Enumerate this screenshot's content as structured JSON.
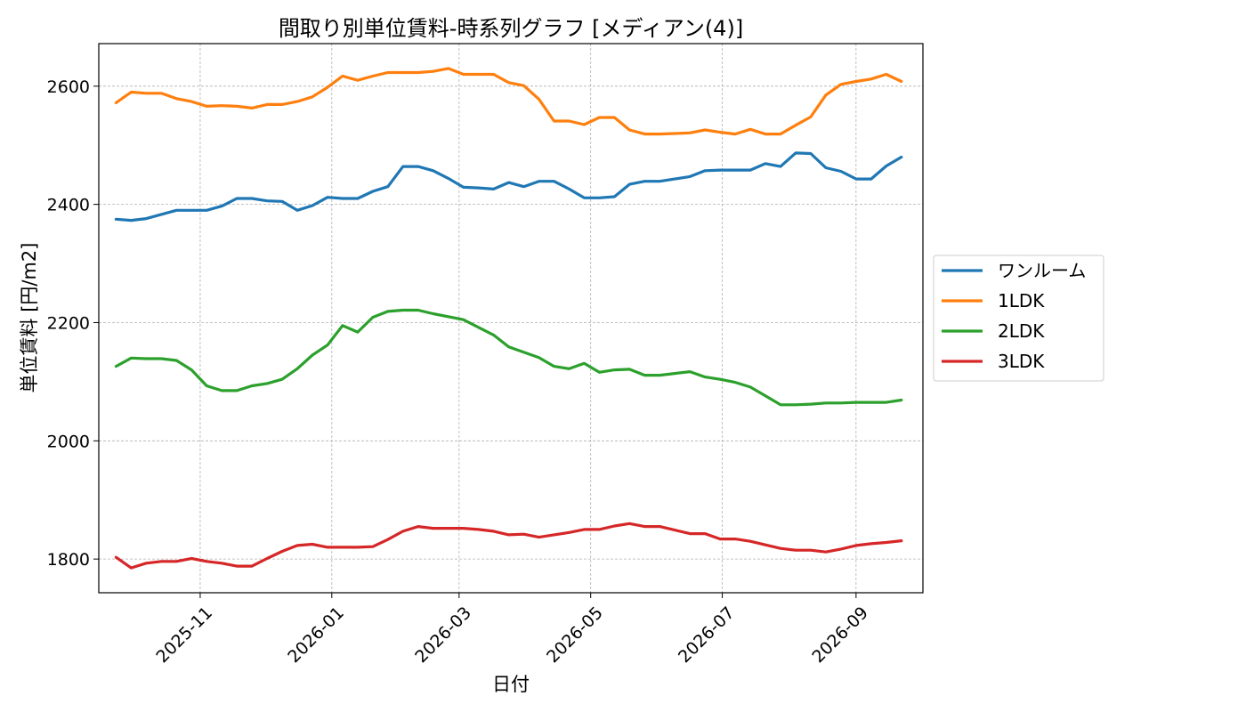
{
  "chart_data": {
    "type": "line",
    "title": "間取り別単位賃料-時系列グラフ [メディアン(4)]",
    "xlabel": "日付",
    "ylabel": "単位賃料 [円/m2]",
    "x_ticks": [
      "2025-11",
      "2026-01",
      "2026-03",
      "2026-05",
      "2026-07",
      "2026-09"
    ],
    "y_ticks": [
      1800,
      2000,
      2200,
      2400,
      2600
    ],
    "ylim": [
      1743,
      2672
    ],
    "xlim": [
      "2025-09-15",
      "2026-10-02"
    ],
    "grid": true,
    "legend_position": "right",
    "x": [
      "2025-09-23",
      "2025-09-30",
      "2025-10-07",
      "2025-10-14",
      "2025-10-21",
      "2025-10-28",
      "2025-11-04",
      "2025-11-11",
      "2025-11-18",
      "2025-11-25",
      "2025-12-02",
      "2025-12-09",
      "2025-12-16",
      "2025-12-23",
      "2025-12-30",
      "2026-01-06",
      "2026-01-13",
      "2026-01-20",
      "2026-01-27",
      "2026-02-03",
      "2026-02-10",
      "2026-02-17",
      "2026-02-24",
      "2026-03-03",
      "2026-03-10",
      "2026-03-17",
      "2026-03-24",
      "2026-03-31",
      "2026-04-07",
      "2026-04-14",
      "2026-04-21",
      "2026-04-28",
      "2026-05-05",
      "2026-05-12",
      "2026-05-19",
      "2026-05-26",
      "2026-06-02",
      "2026-06-09",
      "2026-06-16",
      "2026-06-23",
      "2026-06-30",
      "2026-07-07",
      "2026-07-14",
      "2026-07-21",
      "2026-07-28",
      "2026-08-04",
      "2026-08-11",
      "2026-08-18",
      "2026-08-25",
      "2026-09-01",
      "2026-09-08",
      "2026-09-15",
      "2026-09-22"
    ],
    "series": [
      {
        "name": "ワンルーム",
        "color": "#1f77b4",
        "values": [
          2375,
          2373,
          2376,
          2383,
          2390,
          2390,
          2390,
          2397,
          2410,
          2410,
          2406,
          2405,
          2390,
          2398,
          2412,
          2410,
          2410,
          2422,
          2430,
          2464,
          2464,
          2457,
          2444,
          2429,
          2428,
          2426,
          2437,
          2430,
          2439,
          2439,
          2426,
          2411,
          2411,
          2413,
          2434,
          2439,
          2439,
          2443,
          2447,
          2457,
          2458,
          2458,
          2458,
          2469,
          2464,
          2487,
          2486,
          2462,
          2456,
          2443,
          2443,
          2465,
          2480
        ]
      },
      {
        "name": "1LDK",
        "color": "#ff7f0e",
        "values": [
          2572,
          2590,
          2588,
          2588,
          2579,
          2574,
          2566,
          2567,
          2566,
          2563,
          2569,
          2569,
          2574,
          2582,
          2598,
          2617,
          2610,
          2617,
          2623,
          2623,
          2623,
          2625,
          2630,
          2620,
          2620,
          2620,
          2606,
          2601,
          2578,
          2541,
          2541,
          2535,
          2547,
          2547,
          2526,
          2519,
          2519,
          2520,
          2521,
          2526,
          2522,
          2519,
          2527,
          2519,
          2519,
          2534,
          2548,
          2585,
          2603,
          2608,
          2612,
          2620,
          2608
        ]
      },
      {
        "name": "2LDK",
        "color": "#2ca02c",
        "values": [
          2126,
          2140,
          2139,
          2139,
          2136,
          2120,
          2093,
          2085,
          2085,
          2093,
          2097,
          2104,
          2122,
          2145,
          2162,
          2195,
          2184,
          2209,
          2219,
          2221,
          2221,
          2215,
          2210,
          2205,
          2192,
          2179,
          2159,
          2150,
          2141,
          2126,
          2122,
          2131,
          2116,
          2120,
          2121,
          2111,
          2111,
          2114,
          2117,
          2108,
          2104,
          2099,
          2091,
          2076,
          2061,
          2061,
          2062,
          2064,
          2064,
          2065,
          2065,
          2065,
          2069
        ]
      },
      {
        "name": "3LDK",
        "color": "#d62728",
        "values": [
          1803,
          1785,
          1793,
          1796,
          1796,
          1801,
          1796,
          1793,
          1788,
          1788,
          1801,
          1813,
          1823,
          1825,
          1820,
          1820,
          1820,
          1821,
          1833,
          1847,
          1855,
          1852,
          1852,
          1852,
          1850,
          1847,
          1841,
          1842,
          1837,
          1841,
          1845,
          1850,
          1850,
          1856,
          1860,
          1855,
          1855,
          1849,
          1843,
          1843,
          1834,
          1834,
          1830,
          1824,
          1818,
          1815,
          1815,
          1812,
          1817,
          1823,
          1826,
          1828,
          1831
        ]
      }
    ]
  }
}
